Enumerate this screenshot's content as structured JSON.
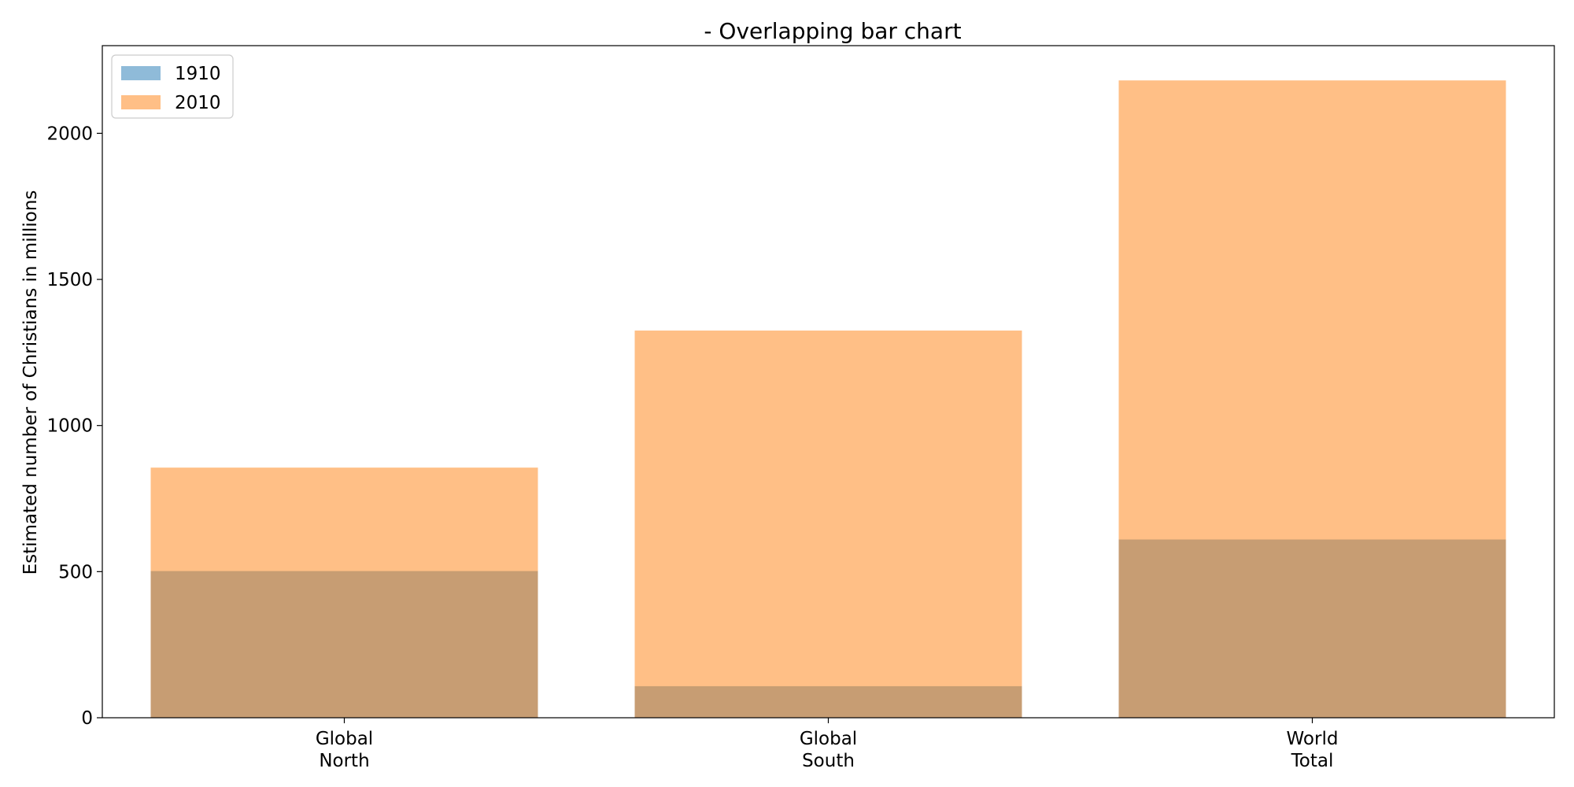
{
  "chart_data": {
    "type": "bar",
    "title": "- Overlapping bar chart",
    "xlabel": "",
    "ylabel": "Estimated number of Christians in millions",
    "categories": [
      [
        "Global",
        "North"
      ],
      [
        "Global",
        "South"
      ],
      [
        "World",
        "Total"
      ]
    ],
    "series": [
      {
        "name": "1910",
        "values": [
          502,
          108,
          610
        ],
        "color": "#1f77b4",
        "opacity": 0.5
      },
      {
        "name": "2010",
        "values": [
          856,
          1325,
          2181
        ],
        "color": "#ff7f0e",
        "opacity": 0.5
      }
    ],
    "ylim": [
      0,
      2300
    ],
    "yticks": [
      0,
      500,
      1000,
      1500,
      2000
    ],
    "grid": false,
    "legend_position": "top-left",
    "overlapping": true
  }
}
